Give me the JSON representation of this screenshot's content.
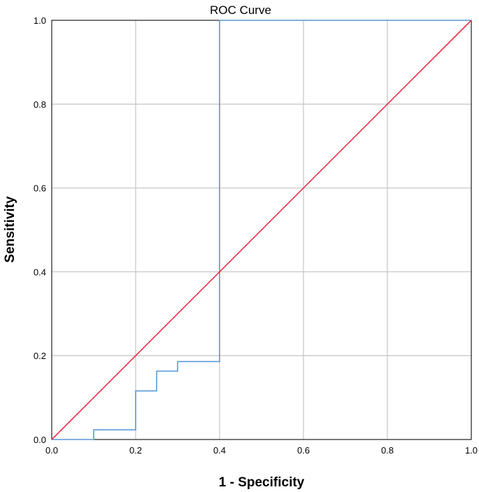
{
  "chart_data": {
    "type": "line",
    "title": "ROC Curve",
    "xlabel": "1 - Specificity",
    "ylabel": "Sensitivity",
    "xlim": [
      0,
      1
    ],
    "ylim": [
      0,
      1
    ],
    "xticks": [
      "0.0",
      "0.2",
      "0.4",
      "0.6",
      "0.8",
      "1.0"
    ],
    "yticks": [
      "0.0",
      "0.2",
      "0.4",
      "0.6",
      "0.8",
      "1.0"
    ],
    "grid": true,
    "legend": "none",
    "series": [
      {
        "color": "#5b9bd5",
        "step": true,
        "points": [
          [
            0.0,
            0.0
          ],
          [
            0.1,
            0.0
          ],
          [
            0.1,
            0.023
          ],
          [
            0.2,
            0.023
          ],
          [
            0.2,
            0.116
          ],
          [
            0.25,
            0.116
          ],
          [
            0.25,
            0.163
          ],
          [
            0.3,
            0.163
          ],
          [
            0.3,
            0.186
          ],
          [
            0.4,
            0.186
          ],
          [
            0.4,
            1.0
          ],
          [
            1.0,
            1.0
          ]
        ]
      },
      {
        "color": "#e8304a",
        "step": false,
        "points": [
          [
            0.0,
            0.0
          ],
          [
            1.0,
            1.0
          ]
        ]
      }
    ]
  }
}
